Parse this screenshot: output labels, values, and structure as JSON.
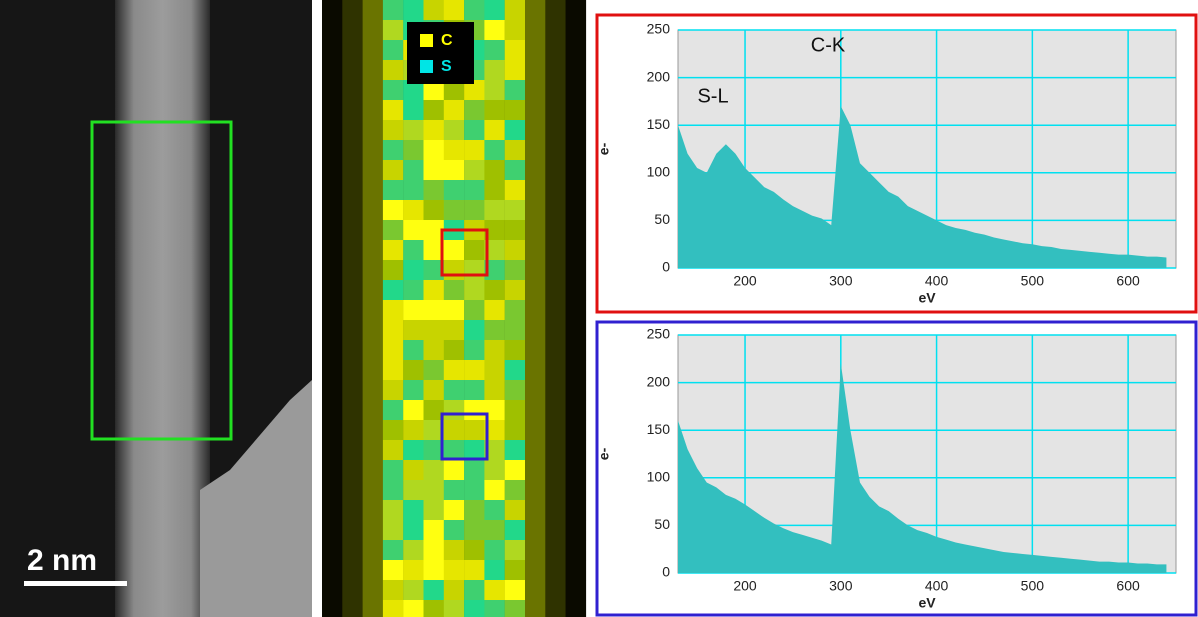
{
  "image_panels": {
    "scale_bar": "2 nm",
    "legend": [
      "C",
      "S"
    ]
  },
  "chart_data": [
    {
      "type": "area",
      "annotations": [
        "S-L",
        "C-K"
      ],
      "x_label": "eV",
      "y_label": "e-",
      "color": "#33bfbf",
      "grid": true,
      "xlim": [
        130,
        650
      ],
      "ylim": [
        0,
        250
      ],
      "xticks": [
        200,
        300,
        400,
        500,
        600
      ],
      "yticks": [
        0,
        50,
        100,
        150,
        200,
        250
      ],
      "x": [
        130,
        140,
        150,
        160,
        170,
        180,
        190,
        200,
        210,
        220,
        230,
        240,
        250,
        260,
        270,
        280,
        290,
        300,
        310,
        320,
        330,
        340,
        350,
        360,
        370,
        380,
        390,
        400,
        410,
        420,
        430,
        440,
        450,
        460,
        470,
        480,
        490,
        500,
        510,
        520,
        530,
        540,
        550,
        560,
        570,
        580,
        590,
        600,
        610,
        620,
        630,
        640
      ],
      "values": [
        150,
        120,
        105,
        100,
        120,
        130,
        120,
        105,
        95,
        85,
        80,
        72,
        65,
        60,
        55,
        52,
        45,
        170,
        150,
        110,
        100,
        90,
        80,
        75,
        65,
        60,
        55,
        50,
        45,
        42,
        40,
        37,
        35,
        32,
        30,
        28,
        26,
        25,
        23,
        22,
        20,
        19,
        18,
        17,
        16,
        15,
        14,
        14,
        13,
        12,
        12,
        11
      ]
    },
    {
      "type": "area",
      "x_label": "eV",
      "y_label": "e-",
      "color": "#33bfbf",
      "grid": true,
      "xlim": [
        130,
        650
      ],
      "ylim": [
        0,
        250
      ],
      "xticks": [
        200,
        300,
        400,
        500,
        600
      ],
      "yticks": [
        0,
        50,
        100,
        150,
        200,
        250
      ],
      "x": [
        130,
        140,
        150,
        160,
        170,
        180,
        190,
        200,
        210,
        220,
        230,
        240,
        250,
        260,
        270,
        280,
        290,
        300,
        310,
        320,
        330,
        340,
        350,
        360,
        370,
        380,
        390,
        400,
        410,
        420,
        430,
        440,
        450,
        460,
        470,
        480,
        490,
        500,
        510,
        520,
        530,
        540,
        550,
        560,
        570,
        580,
        590,
        600,
        610,
        620,
        630,
        640
      ],
      "values": [
        160,
        130,
        110,
        95,
        90,
        82,
        78,
        72,
        65,
        58,
        52,
        47,
        43,
        40,
        37,
        34,
        30,
        220,
        150,
        95,
        80,
        70,
        65,
        57,
        50,
        45,
        42,
        38,
        35,
        32,
        30,
        28,
        26,
        24,
        22,
        21,
        20,
        19,
        18,
        17,
        16,
        15,
        14,
        13,
        12,
        12,
        11,
        11,
        10,
        10,
        9,
        9
      ]
    }
  ]
}
